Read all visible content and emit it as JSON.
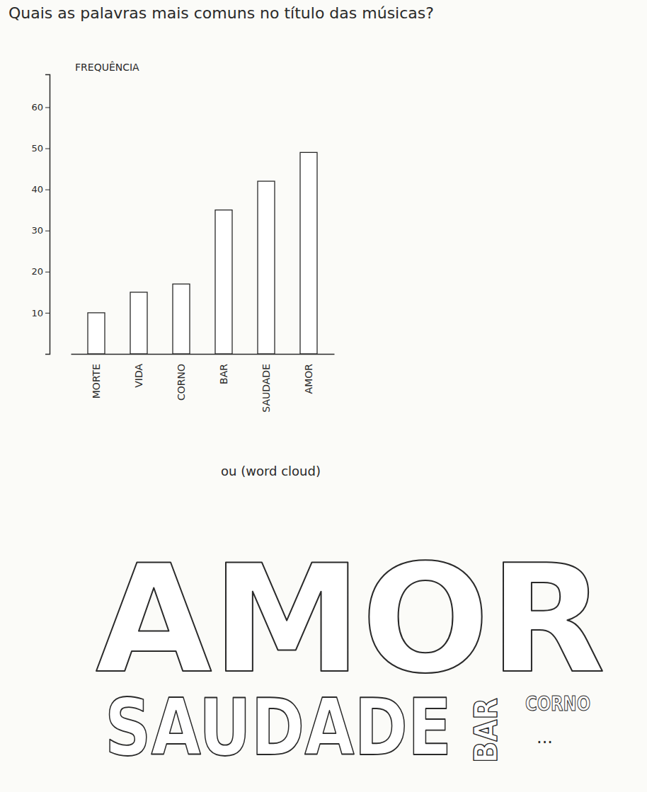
{
  "chart_data": [
    {
      "type": "bar",
      "title": "Quais as palavras mais comuns no título das músicas?",
      "y_label": "FREQUÊNCIA",
      "categories": [
        "MORTE",
        "VIDA",
        "CORNO",
        "BAR",
        "SAUDADE",
        "AMOR"
      ],
      "values": [
        10,
        15,
        17,
        35,
        42,
        49
      ],
      "color": "#ffffff",
      "ylim": [
        0,
        68
      ],
      "yticks": [
        10,
        20,
        30,
        40,
        50,
        60
      ],
      "grid": false
    },
    {
      "type": "word_cloud",
      "title": "ou (word cloud)",
      "words": [
        "AMOR",
        "SAUDADE",
        "BAR",
        "CORNO",
        "..."
      ]
    }
  ]
}
